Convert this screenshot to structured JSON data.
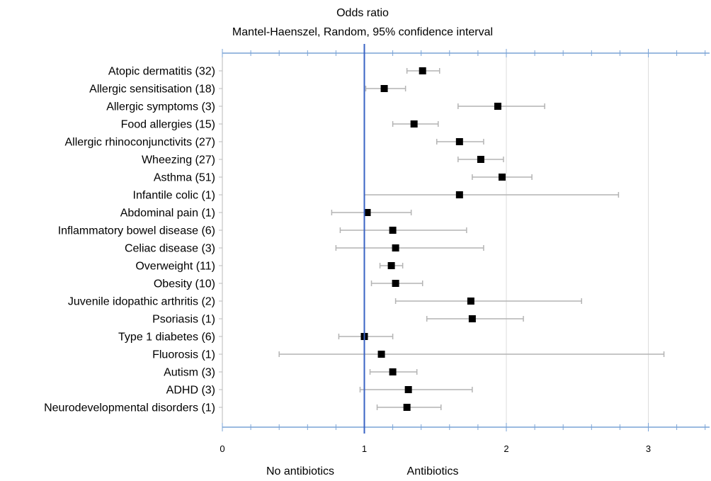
{
  "chart_data": {
    "type": "scatter",
    "title": "Odds ratio",
    "subtitle": "Mantel-Haenszel, Random, 95% confidence interval",
    "xlabel": "",
    "ylabel": "",
    "xlim": [
      0,
      3.45
    ],
    "x_ticks": [
      "0",
      "1",
      "2",
      "3"
    ],
    "reference_line": 1,
    "grid": true,
    "left_label": "No antibiotics",
    "right_label": "Antibiotics",
    "colors": {
      "reference": "#3a63c4",
      "axis": "#7aa3d6",
      "marker": "#000000",
      "whisker": "#b4b4b4",
      "grid": "#dcdcdc"
    },
    "rows": [
      {
        "label": "Atopic dermatitis (32)",
        "or": 1.41,
        "lo": 1.3,
        "hi": 1.53
      },
      {
        "label": "Allergic sensitisation (18)",
        "or": 1.14,
        "lo": 1.01,
        "hi": 1.29
      },
      {
        "label": "Allergic symptoms  (3)",
        "or": 1.94,
        "lo": 1.66,
        "hi": 2.27
      },
      {
        "label": "Food allergies (15)",
        "or": 1.35,
        "lo": 1.2,
        "hi": 1.52
      },
      {
        "label": "Allergic rhinoconjunctivits (27)",
        "or": 1.67,
        "lo": 1.51,
        "hi": 1.84
      },
      {
        "label": "Wheezing (27)",
        "or": 1.82,
        "lo": 1.66,
        "hi": 1.98
      },
      {
        "label": "Asthma (51)",
        "or": 1.97,
        "lo": 1.76,
        "hi": 2.18
      },
      {
        "label": "Infantile colic (1)",
        "or": 1.67,
        "lo": 1.0,
        "hi": 2.79
      },
      {
        "label": "Abdominal pain (1)",
        "or": 1.02,
        "lo": 0.77,
        "hi": 1.33
      },
      {
        "label": "Inflammatory bowel disease (6)",
        "or": 1.2,
        "lo": 0.83,
        "hi": 1.72
      },
      {
        "label": "Celiac disease (3)",
        "or": 1.22,
        "lo": 0.8,
        "hi": 1.84
      },
      {
        "label": "Overweight (11)",
        "or": 1.19,
        "lo": 1.11,
        "hi": 1.27
      },
      {
        "label": "Obesity (10)",
        "or": 1.22,
        "lo": 1.05,
        "hi": 1.41
      },
      {
        "label": "Juvenile idopathic arthritis (2)",
        "or": 1.75,
        "lo": 1.22,
        "hi": 2.53
      },
      {
        "label": "Psoriasis (1)",
        "or": 1.76,
        "lo": 1.44,
        "hi": 2.12
      },
      {
        "label": "Type 1 diabetes (6)",
        "or": 1.0,
        "lo": 0.82,
        "hi": 1.2
      },
      {
        "label": "Fluorosis (1)",
        "or": 1.12,
        "lo": 0.4,
        "hi": 3.11
      },
      {
        "label": "Autism (3)",
        "or": 1.2,
        "lo": 1.04,
        "hi": 1.37
      },
      {
        "label": "ADHD (3)",
        "or": 1.31,
        "lo": 0.97,
        "hi": 1.76
      },
      {
        "label": "Neurodevelopmental disorders (1)",
        "or": 1.3,
        "lo": 1.09,
        "hi": 1.54
      }
    ]
  }
}
